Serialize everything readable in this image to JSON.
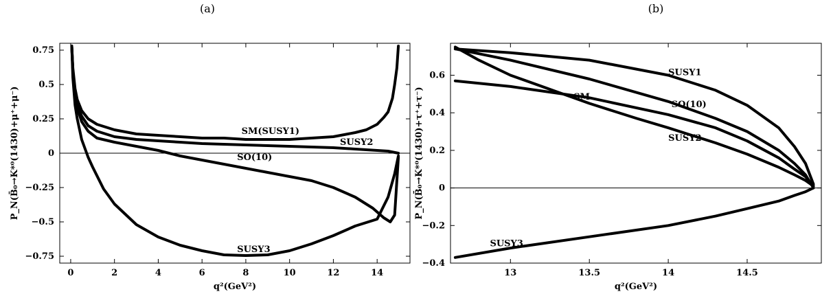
{
  "chart_data": [
    {
      "type": "line",
      "panel_label": "(a)",
      "xlabel": "q²(GeV²)",
      "ylabel": "P_N(B̄₀→K*⁰(1430)+μ⁺+μ⁻)",
      "xlim": [
        -0.5,
        15.5
      ],
      "ylim": [
        -0.8,
        0.8
      ],
      "xticks": [
        0,
        2,
        4,
        6,
        8,
        10,
        12,
        14
      ],
      "xtick_labels": [
        "0",
        "2",
        "4",
        "6",
        "8",
        "10",
        "12",
        "14"
      ],
      "yticks": [
        -0.75,
        -0.5,
        -0.25,
        0,
        0.25,
        0.5,
        0.75
      ],
      "ytick_labels": [
        "−0.75",
        "−0.5",
        "−0.25",
        "0",
        "0.25",
        "0.5",
        "0.75"
      ],
      "zero_line": true,
      "grid": false,
      "series": [
        {
          "name": "SM(SUSY1)",
          "x": [
            0.05,
            0.1,
            0.2,
            0.3,
            0.5,
            0.8,
            1.2,
            2,
            3,
            4,
            5,
            6,
            7,
            8,
            9,
            10,
            11,
            12,
            13,
            13.5,
            14,
            14.3,
            14.5,
            14.7,
            14.8,
            14.9,
            14.97
          ],
          "y": [
            0.78,
            0.62,
            0.47,
            0.39,
            0.31,
            0.25,
            0.21,
            0.17,
            0.14,
            0.13,
            0.12,
            0.11,
            0.11,
            0.1,
            0.1,
            0.1,
            0.11,
            0.12,
            0.15,
            0.17,
            0.21,
            0.26,
            0.3,
            0.4,
            0.5,
            0.62,
            0.78
          ]
        },
        {
          "name": "SUSY2",
          "x": [
            0.05,
            0.1,
            0.2,
            0.3,
            0.5,
            0.8,
            1.2,
            2,
            3,
            4,
            5,
            6,
            7,
            8,
            9,
            10,
            11,
            12,
            13,
            14,
            14.5,
            14.97
          ],
          "y": [
            0.78,
            0.6,
            0.44,
            0.35,
            0.27,
            0.2,
            0.16,
            0.12,
            0.1,
            0.09,
            0.08,
            0.07,
            0.065,
            0.06,
            0.055,
            0.05,
            0.045,
            0.04,
            0.03,
            0.02,
            0.015,
            0.0
          ]
        },
        {
          "name": "SO(10)",
          "x": [
            0.05,
            0.1,
            0.2,
            0.3,
            0.5,
            0.8,
            1.2,
            2,
            3,
            4,
            5,
            6,
            7,
            8,
            9,
            10,
            11,
            12,
            13,
            13.8,
            14.3,
            14.6,
            14.8,
            14.97
          ],
          "y": [
            0.78,
            0.6,
            0.42,
            0.33,
            0.23,
            0.16,
            0.11,
            0.08,
            0.05,
            0.02,
            -0.02,
            -0.05,
            -0.08,
            -0.11,
            -0.14,
            -0.17,
            -0.2,
            -0.25,
            -0.32,
            -0.4,
            -0.47,
            -0.5,
            -0.45,
            -0.03
          ]
        },
        {
          "name": "SUSY3",
          "x": [
            0.05,
            0.1,
            0.2,
            0.3,
            0.5,
            0.8,
            1,
            1.5,
            2,
            3,
            4,
            5,
            6,
            7,
            8,
            9,
            10,
            11,
            12,
            13,
            14,
            14.5,
            14.8,
            14.97
          ],
          "y": [
            0.78,
            0.55,
            0.35,
            0.25,
            0.1,
            -0.03,
            -0.1,
            -0.26,
            -0.37,
            -0.52,
            -0.61,
            -0.67,
            -0.71,
            -0.74,
            -0.745,
            -0.74,
            -0.71,
            -0.66,
            -0.6,
            -0.53,
            -0.48,
            -0.32,
            -0.15,
            -0.02
          ]
        }
      ],
      "annotations": [
        {
          "text": "SM(SUSY1)",
          "x": 7.8,
          "y": 0.14
        },
        {
          "text": "SUSY2",
          "x": 12.3,
          "y": 0.06
        },
        {
          "text": "SO(10)",
          "x": 7.6,
          "y": -0.05
        },
        {
          "text": "SUSY3",
          "x": 7.6,
          "y": -0.72
        }
      ]
    },
    {
      "type": "line",
      "panel_label": "(b)",
      "xlabel": "q²(GeV²)",
      "ylabel": "P_N(B̄₀→K*⁰(1430)+τ⁺+τ⁻)",
      "xlim": [
        12.62,
        14.97
      ],
      "ylim": [
        -0.4,
        0.77
      ],
      "xticks": [
        13,
        13.5,
        14,
        14.5
      ],
      "xtick_labels": [
        "13",
        "13.5",
        "14",
        "14.5"
      ],
      "yticks": [
        -0.4,
        -0.2,
        0,
        0.2,
        0.4,
        0.6
      ],
      "ytick_labels": [
        "−0.4",
        "−0.2",
        "0",
        "0.2",
        "0.4",
        "0.6"
      ],
      "zero_line": true,
      "grid": false,
      "series": [
        {
          "name": "SUSY1",
          "x": [
            12.65,
            13,
            13.5,
            14,
            14.3,
            14.5,
            14.7,
            14.8,
            14.87,
            14.92
          ],
          "y": [
            0.74,
            0.72,
            0.68,
            0.6,
            0.52,
            0.44,
            0.32,
            0.22,
            0.13,
            0.02
          ]
        },
        {
          "name": "SO(10)",
          "x": [
            12.65,
            13,
            13.5,
            14,
            14.3,
            14.5,
            14.7,
            14.8,
            14.87,
            14.92
          ],
          "y": [
            0.74,
            0.68,
            0.58,
            0.46,
            0.37,
            0.3,
            0.2,
            0.13,
            0.07,
            0.0
          ]
        },
        {
          "name": "SM",
          "x": [
            12.65,
            13,
            13.5,
            14,
            14.3,
            14.5,
            14.7,
            14.8,
            14.87,
            14.92
          ],
          "y": [
            0.57,
            0.54,
            0.48,
            0.39,
            0.32,
            0.25,
            0.16,
            0.1,
            0.06,
            0.01
          ]
        },
        {
          "name": "SUSY2",
          "x": [
            12.65,
            12.8,
            13,
            13.3,
            13.5,
            13.8,
            14,
            14.3,
            14.5,
            14.7,
            14.8,
            14.87,
            14.92
          ],
          "y": [
            0.75,
            0.68,
            0.6,
            0.51,
            0.45,
            0.37,
            0.32,
            0.24,
            0.18,
            0.11,
            0.07,
            0.04,
            0.01
          ]
        },
        {
          "name": "SUSY3",
          "x": [
            12.65,
            13,
            13.5,
            14,
            14.3,
            14.5,
            14.7,
            14.8,
            14.87,
            14.92
          ],
          "y": [
            -0.37,
            -0.32,
            -0.26,
            -0.2,
            -0.15,
            -0.11,
            -0.07,
            -0.04,
            -0.02,
            0.0
          ]
        }
      ],
      "annotations": [
        {
          "text": "SUSY1",
          "x": 14.0,
          "y": 0.6
        },
        {
          "text": "SM",
          "x": 13.4,
          "y": 0.47
        },
        {
          "text": "SO(10)",
          "x": 14.02,
          "y": 0.43
        },
        {
          "text": "SUSY2",
          "x": 14.0,
          "y": 0.25
        },
        {
          "text": "SUSY3",
          "x": 12.87,
          "y": -0.31
        }
      ]
    }
  ]
}
